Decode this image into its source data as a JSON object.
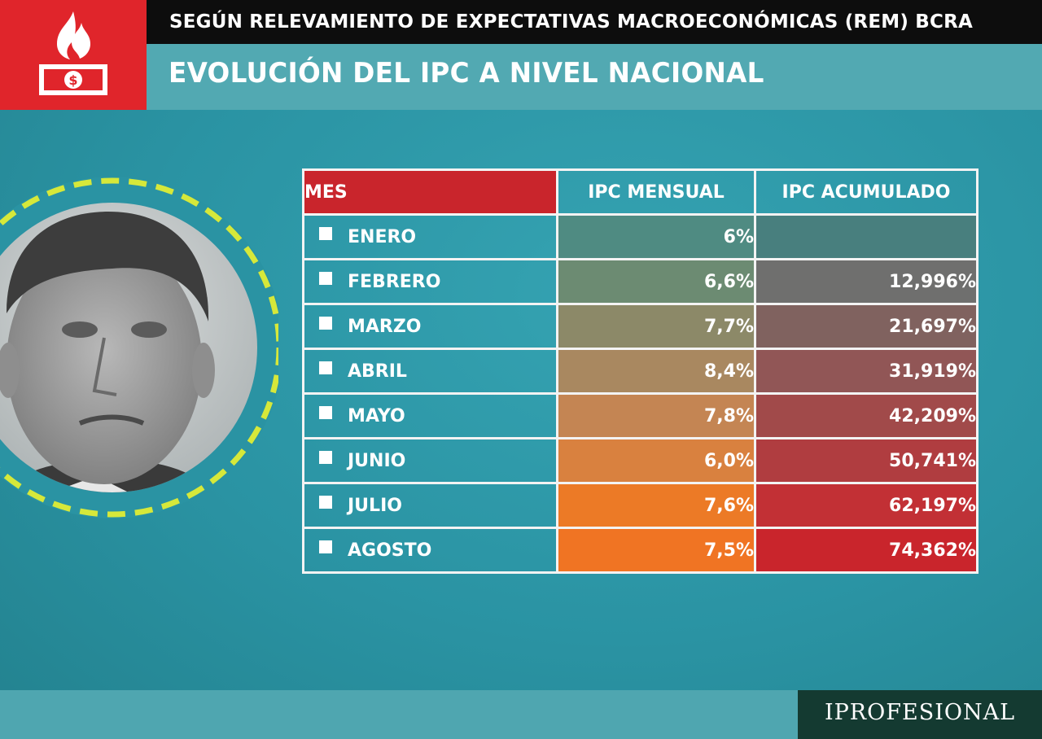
{
  "header": {
    "subtitle": "SEGÚN RELEVAMIENTO DE EXPECTATIVAS MACROECONÓMICAS (REM) BCRA",
    "title": "EVOLUCIÓN DEL IPC A NIVEL NACIONAL"
  },
  "brand": "IPROFESIONAL",
  "icons": {
    "logo": "fire-money-icon",
    "photo": "portrait-photo"
  },
  "colors": {
    "accent_red": "#e0252b",
    "teal": "#2b93a3",
    "brand_green": "#143a31"
  },
  "chart_data": {
    "type": "table",
    "columns": [
      "MES",
      "IPC MENSUAL",
      "IPC ACUMULADO"
    ],
    "rows": [
      {
        "mes": "ENERO",
        "mensual": "6%",
        "acumulado": ""
      },
      {
        "mes": "FEBRERO",
        "mensual": "6,6%",
        "acumulado": "12,996%"
      },
      {
        "mes": "MARZO",
        "mensual": "7,7%",
        "acumulado": "21,697%"
      },
      {
        "mes": "ABRIL",
        "mensual": "8,4%",
        "acumulado": "31,919%"
      },
      {
        "mes": "MAYO",
        "mensual": "7,8%",
        "acumulado": "42,209%"
      },
      {
        "mes": "JUNIO",
        "mensual": "6,0%",
        "acumulado": "50,741%"
      },
      {
        "mes": "JULIO",
        "mensual": "7,6%",
        "acumulado": "62,197%"
      },
      {
        "mes": "AGOSTO",
        "mensual": "7,5%",
        "acumulado": "74,362%"
      }
    ]
  }
}
